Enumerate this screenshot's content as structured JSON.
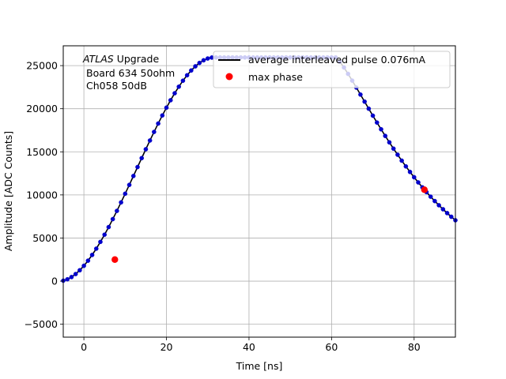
{
  "chart_data": {
    "type": "line",
    "xlabel": "Time [ns]",
    "ylabel": "Amplitude [ADC Counts]",
    "xlim": [
      -5,
      90
    ],
    "ylim": [
      -6500,
      27300
    ],
    "grid": true,
    "xticks": [
      0,
      20,
      40,
      60,
      80
    ],
    "yticks": [
      -5000,
      0,
      5000,
      10000,
      15000,
      20000,
      25000
    ],
    "annotation": {
      "lines": [
        {
          "italic": "ATLAS",
          "rest": " Upgrade"
        },
        {
          "italic": "",
          "rest": "Board 634 50ohm"
        },
        {
          "italic": "",
          "rest": "Ch058 50dB"
        }
      ]
    },
    "legend_position": "top-right",
    "series": [
      {
        "name": "average interleaved pulse 0.076mA",
        "kind": "line-with-markers",
        "line_color": "#000000",
        "marker_color": "#0000cc",
        "pulse_model": {
          "peak": 25950,
          "t0": -6,
          "rise_end": 31.5,
          "flat_end": 61.0,
          "fall_mid": 82.5,
          "value_at_fall_mid": 10600,
          "fall_rate": 0.046
        },
        "sample_step_ns": 1.0
      },
      {
        "name": "max phase",
        "kind": "markers",
        "marker_color": "#ff0000",
        "points": [
          [
            7.5,
            2500
          ],
          [
            82.5,
            10600
          ]
        ]
      }
    ],
    "colors": {
      "grid": "#b0b0b0",
      "axes": "#000000"
    }
  }
}
